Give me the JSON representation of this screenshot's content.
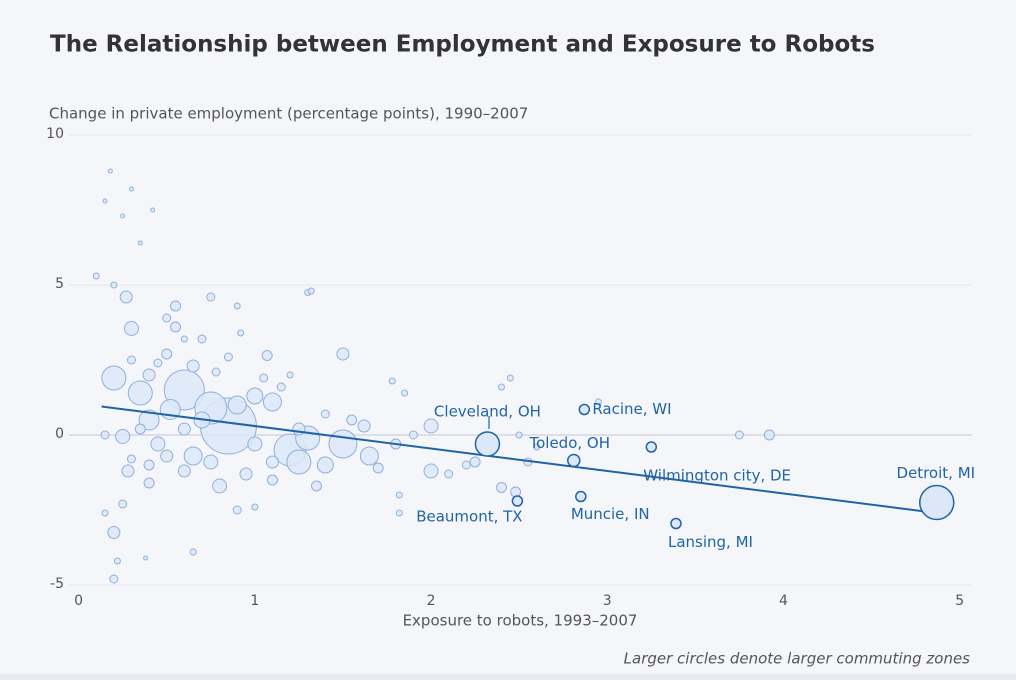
{
  "chart_data": {
    "type": "scatter",
    "title": "The Relationship between Employment and Exposure to Robots",
    "y_label": "Change in private employment (percentage points), 1990–2007",
    "x_label": "Exposure to robots, 1993–2007",
    "note": "Larger circles denote larger commuting zones",
    "xlim": [
      -0.1,
      5.07
    ],
    "xticks": [
      0,
      1,
      2,
      3,
      4,
      5
    ],
    "ylim": [
      -5,
      10
    ],
    "yticks": [
      -5,
      0,
      5,
      10
    ],
    "grid": true,
    "color": "#dce7f8",
    "edge_color": "#8fb0dc",
    "highlight_color": "#1f64a8",
    "series": [
      {
        "x": [
          0.85,
          0.6,
          0.75,
          1.2,
          1.25,
          0.2,
          0.35,
          0.52,
          1.3,
          1.5,
          1.65,
          0.65,
          0.4,
          0.9,
          1.0,
          1.1,
          0.8,
          0.3,
          0.27,
          0.55,
          0.5,
          0.65,
          0.2,
          0.28,
          0.7,
          1.0,
          1.4,
          1.7,
          2.0,
          2.0,
          1.62,
          1.5,
          1.07,
          1.25,
          1.8,
          1.9,
          2.1,
          2.2,
          2.25,
          2.4,
          2.45,
          2.4,
          2.48,
          2.55,
          2.6,
          2.5,
          3.75,
          3.92,
          2.95,
          1.78,
          1.85,
          1.3,
          1.32,
          0.9,
          0.75,
          0.4,
          0.1,
          0.15,
          0.25,
          0.18,
          0.3,
          0.42,
          0.35,
          0.2,
          0.2,
          0.22,
          0.38,
          0.65,
          0.25,
          0.15,
          0.4,
          0.6,
          0.95,
          1.1,
          0.9,
          1.0,
          1.82,
          1.82,
          0.45,
          0.25,
          0.15,
          0.35,
          0.6,
          0.5,
          0.4,
          0.3,
          0.55,
          0.5,
          0.7,
          0.85,
          0.92,
          1.05,
          1.15,
          1.2,
          0.3,
          0.45,
          0.6,
          0.78,
          1.55,
          1.4,
          1.35,
          1.1,
          0.75
        ],
        "values": [
          0.3,
          1.5,
          0.9,
          -0.5,
          -0.9,
          1.9,
          1.4,
          0.85,
          -0.1,
          -0.3,
          -0.7,
          -0.7,
          0.5,
          1.0,
          1.3,
          1.1,
          -1.7,
          3.55,
          4.6,
          4.3,
          2.7,
          2.3,
          -3.25,
          -1.2,
          0.5,
          -0.3,
          -1.0,
          -1.1,
          0.3,
          -1.2,
          0.3,
          2.7,
          2.65,
          0.2,
          -0.3,
          0.0,
          -1.3,
          -1.0,
          -0.9,
          -1.75,
          1.9,
          1.6,
          -1.9,
          -0.9,
          -0.4,
          0.0,
          0.0,
          0.0,
          1.1,
          1.8,
          1.4,
          4.75,
          4.8,
          4.3,
          4.6,
          2.0,
          5.3,
          7.8,
          7.3,
          8.8,
          8.2,
          7.5,
          6.4,
          5.0,
          -4.8,
          -4.2,
          -4.1,
          -3.9,
          -2.3,
          -2.6,
          -1.6,
          -1.2,
          -1.3,
          -1.5,
          -2.5,
          -2.4,
          -2.0,
          -2.6,
          -0.3,
          -0.05,
          0.0,
          0.2,
          0.2,
          -0.7,
          -1.0,
          -0.8,
          3.6,
          3.9,
          3.2,
          2.6,
          3.4,
          1.9,
          1.6,
          2.0,
          2.5,
          2.4,
          3.2,
          2.1,
          0.5,
          0.7,
          -1.7,
          -0.9,
          -0.9
        ],
        "sizes": [
          28,
          20,
          16,
          16,
          12,
          12,
          12,
          10,
          12,
          14,
          9,
          9,
          10,
          9,
          8,
          9,
          7,
          7,
          6,
          5,
          5,
          6,
          6,
          6,
          8,
          7,
          8,
          5,
          7,
          7,
          6,
          6,
          5,
          6,
          5,
          4,
          4,
          4,
          5,
          5,
          3,
          3,
          5,
          4,
          3,
          3,
          4,
          5,
          3,
          3,
          3,
          3,
          3,
          3,
          4,
          6,
          3,
          2,
          2,
          2,
          2,
          2,
          2,
          3,
          4,
          3,
          2,
          3,
          4,
          3,
          5,
          6,
          6,
          5,
          4,
          3,
          3,
          3,
          7,
          7,
          4,
          5,
          6,
          6,
          5,
          4,
          5,
          4,
          4,
          4,
          3,
          4,
          4,
          3,
          4,
          4,
          3,
          4,
          5,
          4,
          5,
          6,
          7
        ]
      }
    ],
    "annotations": [
      {
        "label": "Cleveland, OH",
        "x": 2.32,
        "y": -0.3,
        "size": 12
      },
      {
        "label": "Racine, WI",
        "x": 2.87,
        "y": 0.85,
        "size": 5
      },
      {
        "label": "Toledo, OH",
        "x": 2.81,
        "y": -0.85,
        "size": 6
      },
      {
        "label": "Wilmington city, DE",
        "x": 3.25,
        "y": -0.4,
        "size": 5
      },
      {
        "label": "Detroit, MI",
        "x": 4.87,
        "y": -2.25,
        "size": 17
      },
      {
        "label": "Beaumont, TX",
        "x": 2.49,
        "y": -2.2,
        "size": 5
      },
      {
        "label": "Muncie, IN",
        "x": 2.85,
        "y": -2.05,
        "size": 5
      },
      {
        "label": "Lansing, MI",
        "x": 3.39,
        "y": -2.95,
        "size": 5
      }
    ],
    "trendline": {
      "x": [
        0.13,
        4.87
      ],
      "y": [
        0.95,
        -2.6
      ]
    }
  }
}
